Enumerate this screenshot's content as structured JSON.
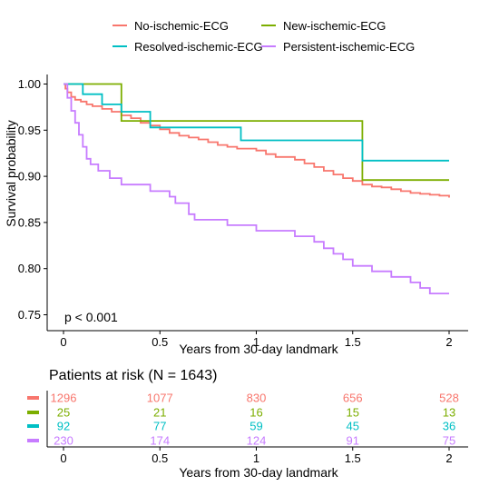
{
  "chart_data": {
    "type": "line",
    "step": true,
    "xlabel": "Years from 30-day landmark",
    "ylabel": "Survival probability",
    "xlim": [
      0,
      2
    ],
    "ylim": [
      0.75,
      1.0
    ],
    "x_ticks": [
      "0",
      "0.5",
      "1",
      "1.5",
      "2"
    ],
    "y_ticks": [
      "0.75",
      "0.80",
      "0.85",
      "0.90",
      "0.95",
      "1.00"
    ],
    "legend_position": "top",
    "annotation": "p < 0.001",
    "series": [
      {
        "name": "No-ischemic-ECG",
        "color": "#F8766D",
        "points": [
          [
            0,
            1.0
          ],
          [
            0.01,
            0.995
          ],
          [
            0.02,
            0.991
          ],
          [
            0.04,
            0.986
          ],
          [
            0.06,
            0.983
          ],
          [
            0.09,
            0.981
          ],
          [
            0.12,
            0.978
          ],
          [
            0.15,
            0.976
          ],
          [
            0.2,
            0.973
          ],
          [
            0.25,
            0.97
          ],
          [
            0.3,
            0.966
          ],
          [
            0.35,
            0.963
          ],
          [
            0.4,
            0.958
          ],
          [
            0.45,
            0.955
          ],
          [
            0.5,
            0.951
          ],
          [
            0.55,
            0.947
          ],
          [
            0.6,
            0.944
          ],
          [
            0.65,
            0.942
          ],
          [
            0.7,
            0.94
          ],
          [
            0.75,
            0.937
          ],
          [
            0.8,
            0.934
          ],
          [
            0.85,
            0.932
          ],
          [
            0.9,
            0.93
          ],
          [
            1.0,
            0.928
          ],
          [
            1.05,
            0.924
          ],
          [
            1.1,
            0.921
          ],
          [
            1.2,
            0.918
          ],
          [
            1.25,
            0.914
          ],
          [
            1.3,
            0.91
          ],
          [
            1.35,
            0.906
          ],
          [
            1.4,
            0.902
          ],
          [
            1.45,
            0.898
          ],
          [
            1.5,
            0.895
          ],
          [
            1.55,
            0.891
          ],
          [
            1.6,
            0.889
          ],
          [
            1.65,
            0.888
          ],
          [
            1.7,
            0.886
          ],
          [
            1.75,
            0.884
          ],
          [
            1.8,
            0.882
          ],
          [
            1.85,
            0.881
          ],
          [
            1.9,
            0.88
          ],
          [
            1.95,
            0.879
          ],
          [
            2.0,
            0.877
          ]
        ],
        "at_risk": [
          1296,
          1077,
          830,
          656,
          528
        ]
      },
      {
        "name": "New-ischemic-ECG",
        "color": "#7CAE00",
        "points": [
          [
            0,
            1.0
          ],
          [
            0.3,
            0.96
          ],
          [
            1.55,
            0.896
          ],
          [
            2.0,
            0.896
          ]
        ],
        "at_risk": [
          25,
          21,
          16,
          15,
          13
        ]
      },
      {
        "name": "Resolved-ischemic-ECG",
        "color": "#00BFC4",
        "points": [
          [
            0,
            1.0
          ],
          [
            0.1,
            0.989
          ],
          [
            0.2,
            0.978
          ],
          [
            0.3,
            0.97
          ],
          [
            0.45,
            0.953
          ],
          [
            0.92,
            0.939
          ],
          [
            1.55,
            0.917
          ],
          [
            2.0,
            0.917
          ]
        ],
        "at_risk": [
          92,
          77,
          59,
          45,
          36
        ]
      },
      {
        "name": "Persistent-ischemic-ECG",
        "color": "#C77CFF",
        "points": [
          [
            0,
            1.0
          ],
          [
            0.02,
            0.985
          ],
          [
            0.04,
            0.971
          ],
          [
            0.06,
            0.958
          ],
          [
            0.08,
            0.945
          ],
          [
            0.1,
            0.932
          ],
          [
            0.12,
            0.919
          ],
          [
            0.14,
            0.913
          ],
          [
            0.18,
            0.906
          ],
          [
            0.24,
            0.898
          ],
          [
            0.3,
            0.891
          ],
          [
            0.38,
            0.891
          ],
          [
            0.45,
            0.884
          ],
          [
            0.55,
            0.878
          ],
          [
            0.58,
            0.871
          ],
          [
            0.65,
            0.859
          ],
          [
            0.68,
            0.853
          ],
          [
            0.75,
            0.853
          ],
          [
            0.85,
            0.847
          ],
          [
            1.0,
            0.841
          ],
          [
            1.1,
            0.841
          ],
          [
            1.2,
            0.835
          ],
          [
            1.3,
            0.829
          ],
          [
            1.35,
            0.822
          ],
          [
            1.4,
            0.816
          ],
          [
            1.45,
            0.81
          ],
          [
            1.5,
            0.803
          ],
          [
            1.6,
            0.797
          ],
          [
            1.7,
            0.791
          ],
          [
            1.8,
            0.785
          ],
          [
            1.85,
            0.779
          ],
          [
            1.9,
            0.773
          ],
          [
            2.0,
            0.773
          ]
        ],
        "at_risk": [
          230,
          174,
          124,
          91,
          75
        ]
      }
    ],
    "risk_table": {
      "title": "Patients at risk (N = 1643)",
      "xlabel": "Years from 30-day landmark",
      "x_ticks": [
        "0",
        "0.5",
        "1",
        "1.5",
        "2"
      ]
    }
  }
}
